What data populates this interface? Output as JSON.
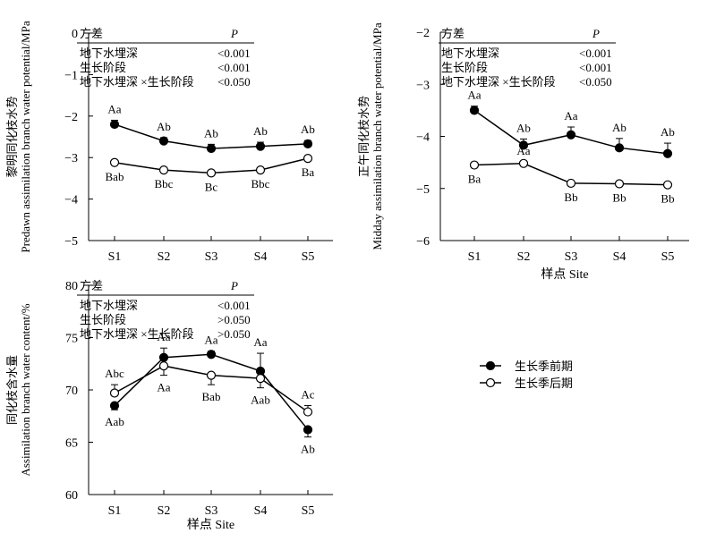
{
  "chart_data": [
    {
      "type": "line",
      "ylabel": [
        "黎明同化枝水势",
        "Predawn assimilation branch water potential/MPa"
      ],
      "xlabel": "",
      "categories": [
        "S1",
        "S2",
        "S3",
        "S4",
        "S5"
      ],
      "ylim": [
        -5,
        0
      ],
      "yticks": [
        0,
        -1,
        -2,
        -3,
        -4,
        -5
      ],
      "series": [
        {
          "name": "生长季前期",
          "marker": "filled",
          "values": [
            -2.2,
            -2.6,
            -2.78,
            -2.73,
            -2.67
          ],
          "errors": [
            0.1,
            0.08,
            0.1,
            0.1,
            0.08
          ],
          "labels": [
            "Aa",
            "Ab",
            "Ab",
            "Ab",
            "Ab"
          ]
        },
        {
          "name": "生长季后期",
          "marker": "open",
          "values": [
            -3.12,
            -3.3,
            -3.37,
            -3.3,
            -3.02
          ],
          "errors": [
            0.0,
            0.0,
            0.0,
            0.0,
            0.0
          ],
          "labels": [
            "Bab",
            "Bbc",
            "Bc",
            "Bbc",
            "Ba"
          ]
        }
      ],
      "anova": {
        "header": [
          "方差",
          "P"
        ],
        "rows": [
          [
            "地下水埋深",
            "<0.001"
          ],
          [
            "生长阶段",
            "<0.001"
          ],
          [
            "地下水埋深 ×生长阶段",
            "<0.050"
          ]
        ]
      }
    },
    {
      "type": "line",
      "ylabel": [
        "正午同化枝水势",
        "Midday assimilation branch water potential/MPa"
      ],
      "xlabel": "样点 Site",
      "categories": [
        "S1",
        "S2",
        "S3",
        "S4",
        "S5"
      ],
      "ylim": [
        -6,
        -2
      ],
      "yticks": [
        -2,
        -3,
        -4,
        -5,
        -6
      ],
      "series": [
        {
          "name": "生长季前期",
          "marker": "filled",
          "values": [
            -3.5,
            -4.17,
            -3.97,
            -4.22,
            -4.33
          ],
          "errors": [
            0.08,
            0.12,
            0.15,
            0.18,
            0.2
          ],
          "labels": [
            "Aa",
            "Ab",
            "Aa",
            "Ab",
            "Ab"
          ]
        },
        {
          "name": "生长季后期",
          "marker": "open",
          "values": [
            -4.55,
            -4.52,
            -4.9,
            -4.91,
            -4.93
          ],
          "errors": [
            0.0,
            0.0,
            0.0,
            0.0,
            0.0
          ],
          "labels": [
            "Ba",
            "Aa",
            "Bb",
            "Bb",
            "Bb"
          ]
        }
      ],
      "anova": {
        "header": [
          "方差",
          "P"
        ],
        "rows": [
          [
            "地下水埋深",
            "<0.001"
          ],
          [
            "生长阶段",
            "<0.001"
          ],
          [
            "地下水埋深 ×生长阶段",
            "<0.050"
          ]
        ]
      }
    },
    {
      "type": "line",
      "ylabel": [
        "同化枝含水量",
        "Assimilation branch water content/%"
      ],
      "xlabel": "样点 Site",
      "categories": [
        "S1",
        "S2",
        "S3",
        "S4",
        "S5"
      ],
      "ylim": [
        60,
        80
      ],
      "yticks": [
        80,
        75,
        70,
        65,
        60
      ],
      "series": [
        {
          "name": "生长季前期",
          "marker": "filled",
          "values": [
            68.5,
            73.1,
            73.4,
            71.8,
            66.2
          ],
          "errors": [
            0.4,
            0.9,
            0.3,
            1.7,
            0.7
          ],
          "labels": [
            "Aab",
            "Aa",
            "Aa",
            "Aa",
            "Ab"
          ]
        },
        {
          "name": "生长季后期",
          "marker": "open",
          "values": [
            69.7,
            72.3,
            71.4,
            71.1,
            67.9
          ],
          "errors": [
            0.8,
            0.9,
            0.9,
            0.9,
            0.6
          ],
          "labels": [
            "Abc",
            "Aa",
            "Bab",
            "Aab",
            "Ac"
          ]
        }
      ],
      "anova": {
        "header": [
          "方差",
          "P"
        ],
        "rows": [
          [
            "地下水埋深",
            "<0.001"
          ],
          [
            "生长阶段",
            ">0.050"
          ],
          [
            "地下水埋深 ×生长阶段",
            ">0.050"
          ]
        ]
      }
    }
  ],
  "legend": {
    "items": [
      {
        "name": "生长季前期",
        "marker": "filled"
      },
      {
        "name": "生长季后期",
        "marker": "open"
      }
    ]
  }
}
